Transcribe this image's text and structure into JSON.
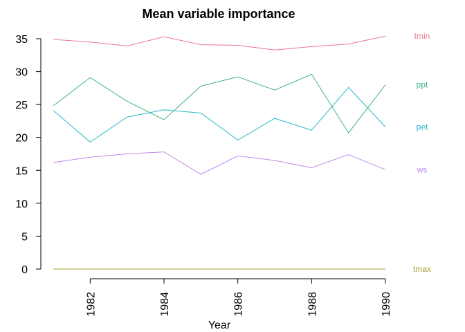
{
  "chart_data": {
    "type": "line",
    "title": "Mean variable importance",
    "xlabel": "Year",
    "ylabel": "",
    "x": [
      1981,
      1982,
      1983,
      1984,
      1985,
      1986,
      1987,
      1988,
      1989,
      1990
    ],
    "xlim": [
      1981,
      1990
    ],
    "ylim": [
      0,
      35
    ],
    "x_ticks": [
      "1982",
      "1984",
      "1986",
      "1988",
      "1990"
    ],
    "y_ticks": [
      "0",
      "5",
      "10",
      "15",
      "20",
      "25",
      "30",
      "35"
    ],
    "grid": false,
    "legend": "series labels at right end of lines",
    "series": [
      {
        "name": "tmin",
        "color": "#F0758F",
        "values": [
          34.9,
          34.5,
          33.9,
          35.3,
          34.1,
          34.0,
          33.3,
          33.8,
          34.2,
          35.4
        ]
      },
      {
        "name": "ppt",
        "color": "#3DB583",
        "values": [
          24.8,
          29.1,
          25.5,
          22.7,
          27.8,
          29.2,
          27.2,
          29.6,
          20.7,
          28.0
        ]
      },
      {
        "name": "pet",
        "color": "#26B7C8",
        "values": [
          24.1,
          19.3,
          23.1,
          24.2,
          23.7,
          19.6,
          22.9,
          21.1,
          27.6,
          21.6
        ]
      },
      {
        "name": "ws",
        "color": "#C188E8",
        "values": [
          16.2,
          17.0,
          17.5,
          17.8,
          14.4,
          17.2,
          16.5,
          15.4,
          17.4,
          15.1
        ]
      },
      {
        "name": "tmax",
        "color": "#A99B33",
        "values": [
          0,
          0,
          0,
          0,
          0,
          0,
          0,
          0,
          0,
          0
        ]
      }
    ]
  }
}
